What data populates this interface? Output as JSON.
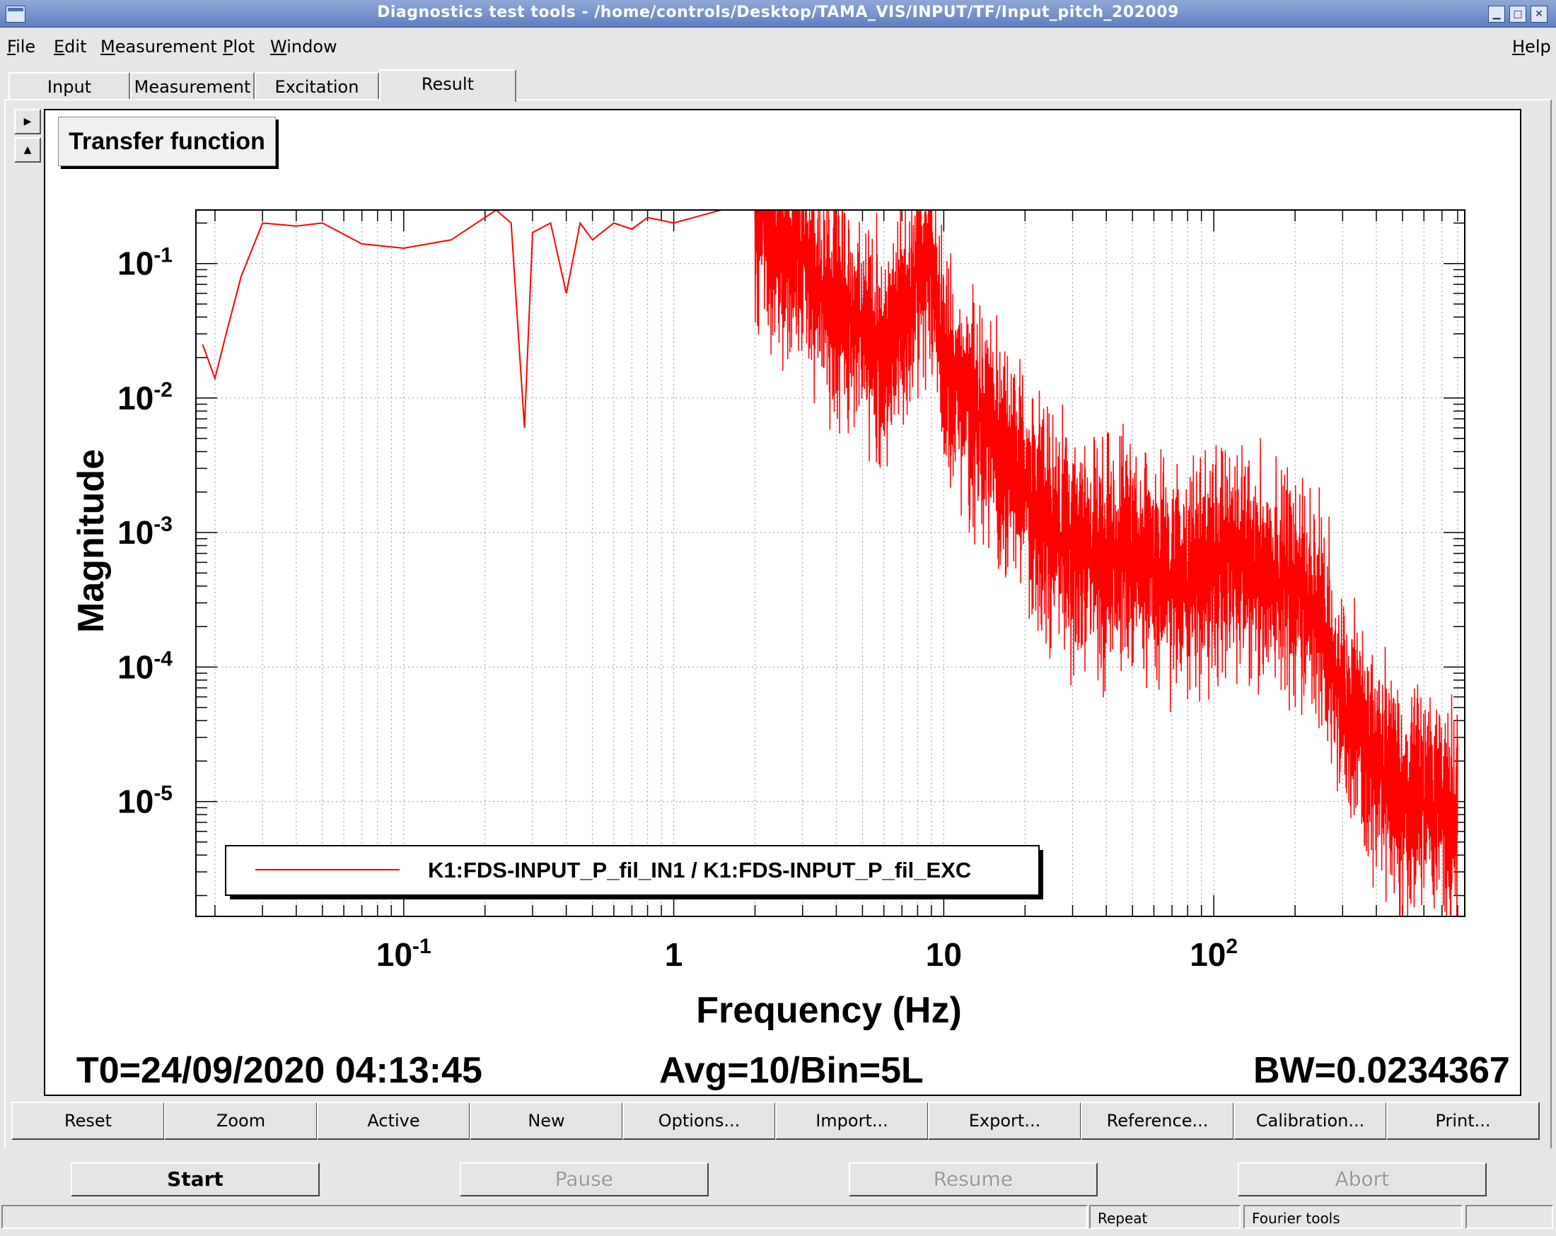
{
  "window": {
    "title": "Diagnostics test tools - /home/controls/Desktop/TAMA_VIS/INPUT/TF/Input_pitch_202009"
  },
  "menu": {
    "file": "File",
    "edit": "Edit",
    "measurement": "Measurement",
    "plot": "Plot",
    "window": "Window",
    "help": "Help"
  },
  "tabs": [
    {
      "label": "Input"
    },
    {
      "label": "Measurement"
    },
    {
      "label": "Excitation"
    },
    {
      "label": "Result"
    }
  ],
  "plot": {
    "panel_title": "Transfer function",
    "footer": {
      "t0": "T0=24/09/2020 04:13:45",
      "avg": "Avg=10/Bin=5L",
      "bw": "BW=0.0234367"
    }
  },
  "chart_data": {
    "type": "line",
    "xscale": "log",
    "yscale": "log",
    "xlabel": "Frequency (Hz)",
    "ylabel": "Magnitude",
    "xlim": [
      0.017,
      850
    ],
    "ylim": [
      1.4e-06,
      0.25
    ],
    "grid": true,
    "legend_position": "bottom-left",
    "x_ticks": [
      "10^-1",
      "1",
      "10",
      "10^2"
    ],
    "y_ticks": [
      "10^-1",
      "10^-2",
      "10^-3",
      "10^-4",
      "10^-5"
    ],
    "series": [
      {
        "name": "K1:FDS-INPUT_P_fil_IN1 / K1:FDS-INPUT_P_fil_EXC",
        "color": "#ff0000",
        "x": [
          0.018,
          0.02,
          0.022,
          0.025,
          0.03,
          0.04,
          0.05,
          0.07,
          0.1,
          0.15,
          0.2,
          0.22,
          0.25,
          0.28,
          0.3,
          0.35,
          0.4,
          0.45,
          0.5,
          0.6,
          0.7,
          0.8,
          1.0,
          1.5,
          2.0,
          2.5,
          3.0,
          4.0,
          5.0,
          6.0,
          7.0,
          8.0,
          9.0,
          10,
          12,
          15,
          20,
          25,
          30,
          40,
          50,
          60,
          80,
          100,
          120,
          150,
          200,
          250,
          300,
          400,
          500,
          600,
          800
        ],
        "values": [
          0.025,
          0.014,
          0.03,
          0.08,
          0.2,
          0.19,
          0.2,
          0.14,
          0.13,
          0.15,
          0.22,
          0.38,
          0.2,
          0.006,
          0.17,
          0.2,
          0.06,
          0.2,
          0.15,
          0.2,
          0.18,
          0.22,
          0.2,
          0.25,
          0.25,
          0.15,
          0.12,
          0.05,
          0.03,
          0.02,
          0.04,
          0.08,
          0.1,
          0.02,
          0.01,
          0.005,
          0.002,
          0.001,
          0.0008,
          0.0006,
          0.0007,
          0.0005,
          0.0004,
          0.0006,
          0.0008,
          0.0005,
          0.0004,
          0.0002,
          5e-05,
          2e-05,
          1e-05,
          1e-05,
          8e-06
        ]
      }
    ]
  },
  "toolbar": {
    "reset": "Reset",
    "zoom": "Zoom",
    "active": "Active",
    "new": "New",
    "options": "Options...",
    "import": "Import...",
    "export": "Export...",
    "reference": "Reference...",
    "calibration": "Calibration...",
    "print": "Print..."
  },
  "controls": {
    "start": "Start",
    "pause": "Pause",
    "resume": "Resume",
    "abort": "Abort"
  },
  "status": {
    "repeat": "Repeat",
    "fourier": "Fourier tools"
  }
}
